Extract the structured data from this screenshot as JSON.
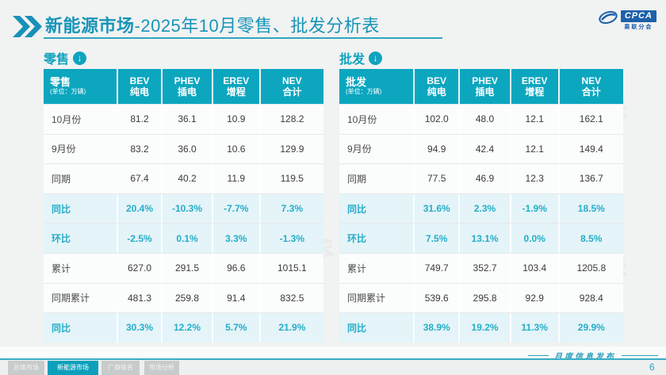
{
  "header": {
    "title_bold": "新能源市场",
    "title_rest": "-2025年10月零售、批发分析表",
    "logo": {
      "brand": "CPCA",
      "brand_cn": "乘联分会"
    }
  },
  "tables": {
    "retail": {
      "section_label": "零售",
      "corner_label": "零售",
      "unit_note": "(单位：万辆)",
      "columns": [
        {
          "en": "BEV",
          "cn": "纯电"
        },
        {
          "en": "PHEV",
          "cn": "插电"
        },
        {
          "en": "EREV",
          "cn": "增程"
        },
        {
          "en": "NEV",
          "cn": "合计"
        }
      ],
      "rows": [
        {
          "label": "10月份",
          "values": [
            "81.2",
            "36.1",
            "10.9",
            "128.2"
          ],
          "highlight": false
        },
        {
          "label": "9月份",
          "values": [
            "83.2",
            "36.0",
            "10.6",
            "129.9"
          ],
          "highlight": false
        },
        {
          "label": "同期",
          "values": [
            "67.4",
            "40.2",
            "11.9",
            "119.5"
          ],
          "highlight": false
        },
        {
          "label": "同比",
          "values": [
            "20.4%",
            "-10.3%",
            "-7.7%",
            "7.3%"
          ],
          "highlight": true
        },
        {
          "label": "环比",
          "values": [
            "-2.5%",
            "0.1%",
            "3.3%",
            "-1.3%"
          ],
          "highlight": true
        },
        {
          "label": "累计",
          "values": [
            "627.0",
            "291.5",
            "96.6",
            "1015.1"
          ],
          "highlight": false
        },
        {
          "label": "同期累计",
          "values": [
            "481.3",
            "259.8",
            "91.4",
            "832.5"
          ],
          "highlight": false
        },
        {
          "label": "同比",
          "values": [
            "30.3%",
            "12.2%",
            "5.7%",
            "21.9%"
          ],
          "highlight": true
        }
      ]
    },
    "wholesale": {
      "section_label": "批发",
      "corner_label": "批发",
      "unit_note": "(单位：万辆)",
      "columns": [
        {
          "en": "BEV",
          "cn": "纯电"
        },
        {
          "en": "PHEV",
          "cn": "插电"
        },
        {
          "en": "EREV",
          "cn": "增程"
        },
        {
          "en": "NEV",
          "cn": "合计"
        }
      ],
      "rows": [
        {
          "label": "10月份",
          "values": [
            "102.0",
            "48.0",
            "12.1",
            "162.1"
          ],
          "highlight": false
        },
        {
          "label": "9月份",
          "values": [
            "94.9",
            "42.4",
            "12.1",
            "149.4"
          ],
          "highlight": false
        },
        {
          "label": "同期",
          "values": [
            "77.5",
            "46.9",
            "12.3",
            "136.7"
          ],
          "highlight": false
        },
        {
          "label": "同比",
          "values": [
            "31.6%",
            "2.3%",
            "-1.9%",
            "18.5%"
          ],
          "highlight": true
        },
        {
          "label": "环比",
          "values": [
            "7.5%",
            "13.1%",
            "0.0%",
            "8.5%"
          ],
          "highlight": true
        },
        {
          "label": "累计",
          "values": [
            "749.7",
            "352.7",
            "103.4",
            "1205.8"
          ],
          "highlight": false
        },
        {
          "label": "同期累计",
          "values": [
            "539.6",
            "295.8",
            "92.9",
            "928.4"
          ],
          "highlight": false
        },
        {
          "label": "同比",
          "values": [
            "38.9%",
            "19.2%",
            "11.3%",
            "29.9%"
          ],
          "highlight": true
        }
      ]
    }
  },
  "footer": {
    "release_label": "月度信息发布",
    "page_number": "6",
    "tabs": [
      {
        "label": "总体市场",
        "active": false
      },
      {
        "label": "新能源市场",
        "active": true
      },
      {
        "label": "厂商排名",
        "active": false
      },
      {
        "label": "市场分析",
        "active": false
      }
    ]
  },
  "watermark": "乘联会",
  "colors": {
    "teal_header": "#0CA6BF",
    "teal_title": "#1795B8",
    "highlight_bg": "#E4F4F8",
    "highlight_text": "#25ADC9",
    "logo_blue": "#1D61A8",
    "tab_gray": "#C8CBCB"
  }
}
